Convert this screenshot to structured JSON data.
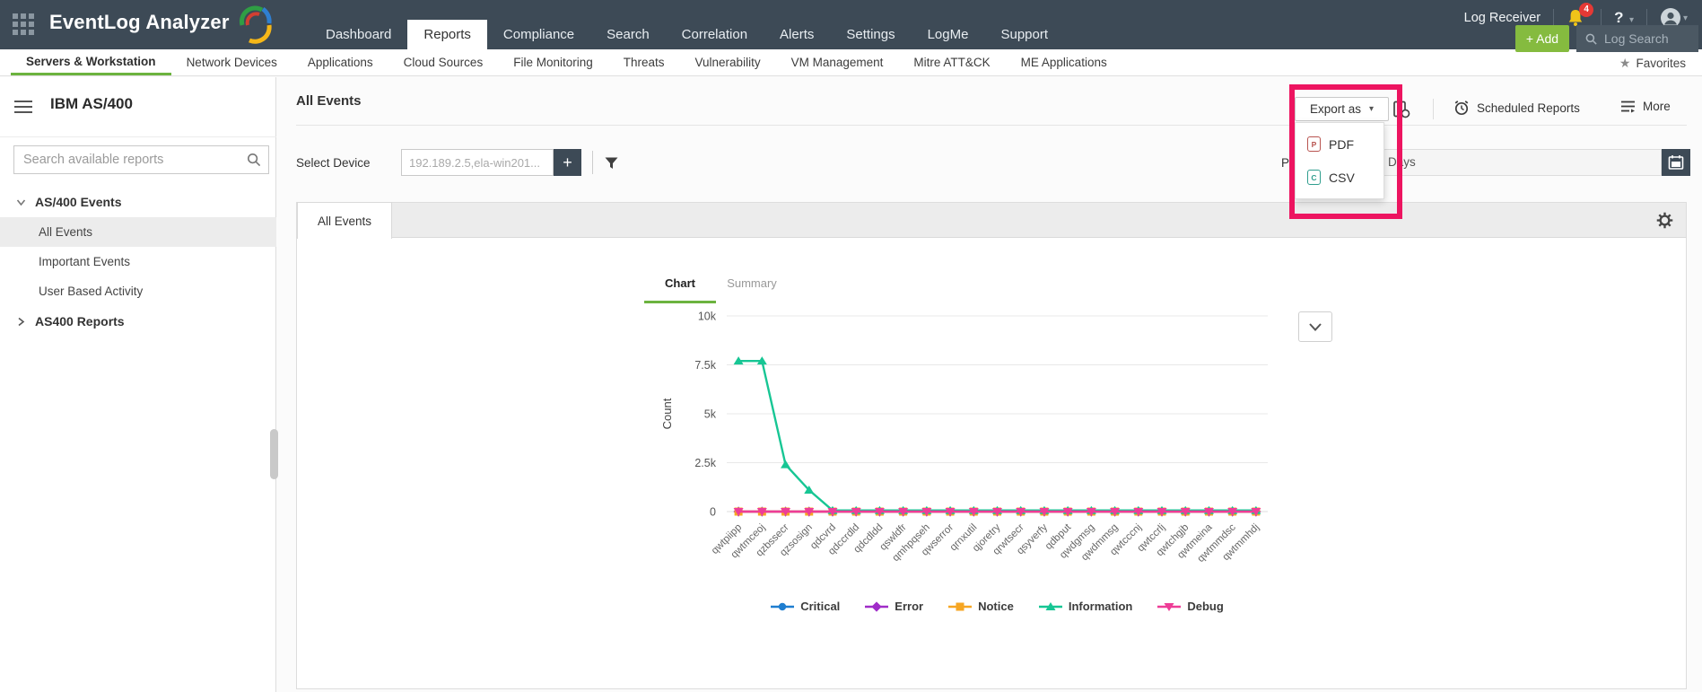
{
  "colors": {
    "header_bg": "#3d4a56",
    "accent_green": "#6cb33f",
    "add_button_green": "#85bb3f",
    "highlight_pink": "#ed1460",
    "notification_red": "#e53935",
    "bell_yellow": "#f0c419"
  },
  "icons": {
    "caret_down": "▾",
    "star": "★",
    "plus": "+",
    "help": "?"
  },
  "header": {
    "app_title": "EventLog Analyzer",
    "nav": [
      "Dashboard",
      "Reports",
      "Compliance",
      "Search",
      "Correlation",
      "Alerts",
      "Settings",
      "LogMe",
      "Support"
    ],
    "active_nav": "Reports",
    "log_receiver_label": "Log Receiver",
    "notification_count": "4",
    "add_button_label": "+ Add",
    "log_search_placeholder": "Log Search"
  },
  "subnav": {
    "items": [
      "Servers & Workstation",
      "Network Devices",
      "Applications",
      "Cloud Sources",
      "File Monitoring",
      "Threats",
      "Vulnerability",
      "VM Management",
      "Mitre ATT&CK",
      "ME Applications"
    ],
    "active": "Servers & Workstation",
    "favorites_label": "Favorites"
  },
  "sidebar": {
    "title": "IBM AS/400",
    "search_placeholder": "Search available reports",
    "groups": [
      {
        "label": "AS/400 Events",
        "expanded": true,
        "selected": "All Events",
        "items": [
          "All Events",
          "Important Events",
          "User Based Activity"
        ]
      },
      {
        "label": "AS400 Reports",
        "expanded": false,
        "selected": "",
        "items": []
      }
    ]
  },
  "main": {
    "page_title": "All Events",
    "select_device_label": "Select Device",
    "device_value": "192.189.2.5,ela-win201...",
    "export_as_label": "Export as",
    "export_menu": [
      {
        "label": "PDF",
        "icon": "pdf-file-icon",
        "icon_color": "#b85450"
      },
      {
        "label": "CSV",
        "icon": "csv-file-icon",
        "icon_color": "#2f9e8e"
      }
    ],
    "scheduled_reports_label": "Scheduled Reports",
    "more_label": "More",
    "period_label_visible": "P",
    "period_value_visible": "Days",
    "tab_label": "All Events",
    "view_tabs": [
      "Chart",
      "Summary"
    ],
    "active_view": "Chart"
  },
  "chart_data": {
    "type": "line",
    "title": "",
    "xlabel": "",
    "ylabel": "Count",
    "ylim": [
      0,
      10000
    ],
    "ytick_values": [
      0,
      2500,
      5000,
      7500,
      10000
    ],
    "ytick_labels": [
      "0",
      "2.5k",
      "5k",
      "7.5k",
      "10k"
    ],
    "grid": true,
    "legend_position": "bottom",
    "categories": [
      "qwtpiipp",
      "qwtmceoj",
      "qzbssecr",
      "qzsosign",
      "qdcvrd",
      "qdccrdld",
      "qdcdldd",
      "qswldfr",
      "qmhpqseh",
      "qwserror",
      "qrnxutil",
      "qjoretry",
      "qrwtsecr",
      "qsyverfy",
      "qdbput",
      "qwdgmsg",
      "qwdmmsg",
      "qwtcccnj",
      "qwtccrlj",
      "qwtchgjb",
      "qwtmeina",
      "qwtmmdsc",
      "qwtmmhdj"
    ],
    "series": [
      {
        "name": "Critical",
        "color": "#1f7ed0",
        "marker": "circle",
        "values": [
          0,
          0,
          0,
          0,
          0,
          0,
          0,
          0,
          0,
          0,
          0,
          0,
          0,
          0,
          0,
          0,
          0,
          0,
          0,
          0,
          0,
          0,
          0
        ]
      },
      {
        "name": "Error",
        "color": "#a02cc8",
        "marker": "diamond",
        "values": [
          0,
          0,
          0,
          0,
          0,
          0,
          0,
          0,
          0,
          0,
          0,
          0,
          0,
          0,
          0,
          0,
          0,
          0,
          0,
          0,
          0,
          0,
          0
        ]
      },
      {
        "name": "Notice",
        "color": "#f6a623",
        "marker": "square",
        "values": [
          0,
          0,
          0,
          0,
          0,
          0,
          0,
          0,
          0,
          0,
          0,
          0,
          0,
          0,
          0,
          0,
          0,
          0,
          0,
          0,
          0,
          0,
          0
        ]
      },
      {
        "name": "Information",
        "color": "#17c694",
        "marker": "triangle-up",
        "values": [
          7700,
          7700,
          2400,
          1100,
          60,
          60,
          60,
          60,
          60,
          60,
          60,
          60,
          60,
          60,
          60,
          60,
          60,
          60,
          60,
          60,
          60,
          60,
          60
        ]
      },
      {
        "name": "Debug",
        "color": "#ee3d97",
        "marker": "triangle-down",
        "values": [
          0,
          0,
          0,
          0,
          0,
          0,
          0,
          0,
          0,
          0,
          0,
          0,
          0,
          0,
          0,
          0,
          0,
          0,
          0,
          0,
          0,
          0,
          0
        ]
      }
    ]
  }
}
